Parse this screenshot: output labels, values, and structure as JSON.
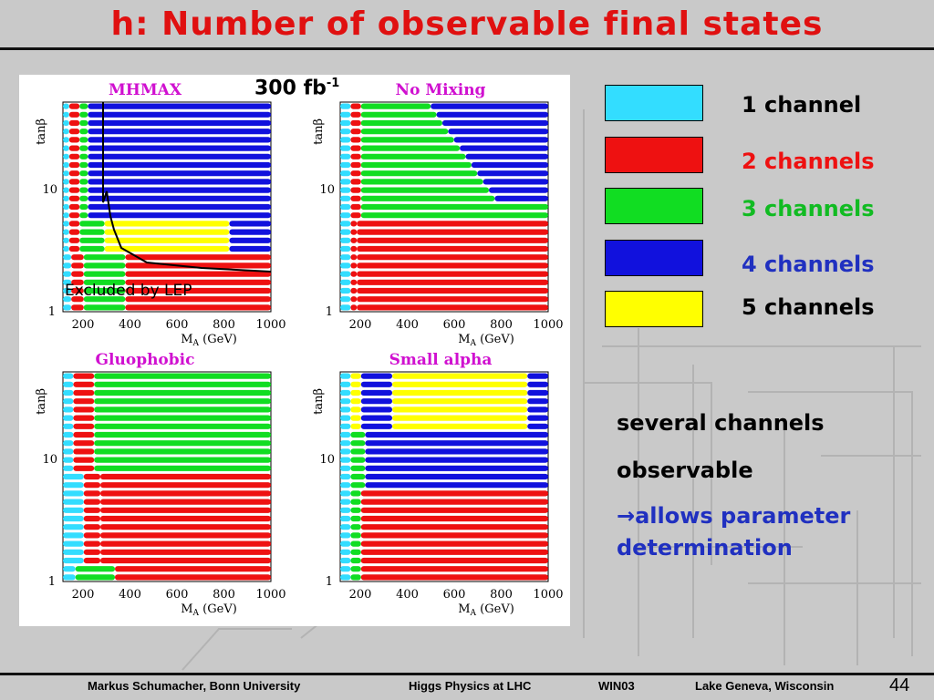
{
  "slide": {
    "title": "h: Number of observable final states",
    "luminosity": "300 fb",
    "luminosity_exp": "-1",
    "excluded_label": "Excluded by LEP"
  },
  "plots": [
    {
      "name": "MHMAX",
      "title_color": "#d010d0"
    },
    {
      "name": "No Mixing",
      "title_color": "#d010d0"
    },
    {
      "name": "Gluophobic",
      "title_color": "#d010d0"
    },
    {
      "name": "Small alpha",
      "title_color": "#d010d0"
    }
  ],
  "axes": {
    "ylabel": "tanβ",
    "xlabel": "M",
    "xlabel_sub": "A",
    "xlabel_unit": " (GeV)",
    "xticks": [
      "200",
      "400",
      "600",
      "800",
      "1000"
    ],
    "yticks": [
      "10",
      "1"
    ]
  },
  "legend": [
    {
      "label": "1 channel",
      "color": "#33ddff",
      "text_color": "#000000"
    },
    {
      "label": "2 channels",
      "color": "#ee1111",
      "text_color": "#ee1111"
    },
    {
      "label": "3 channels",
      "color": "#11dd22",
      "text_color": "#11bb22"
    },
    {
      "label": "4 channels",
      "color": "#1111dd",
      "text_color": "#2030c0"
    },
    {
      "label": "5 channels",
      "color": "#ffff00",
      "text_color": "#000000"
    }
  ],
  "notes": {
    "line1": "several channels",
    "line2": "observable",
    "line3": "→allows parameter",
    "line4": "determination"
  },
  "footer": {
    "author": "Markus Schumacher,  Bonn University",
    "talk": "Higgs Physics at LHC",
    "conference": "WIN03",
    "place": "Lake Geneva, Wisconsin",
    "page": "44"
  }
}
